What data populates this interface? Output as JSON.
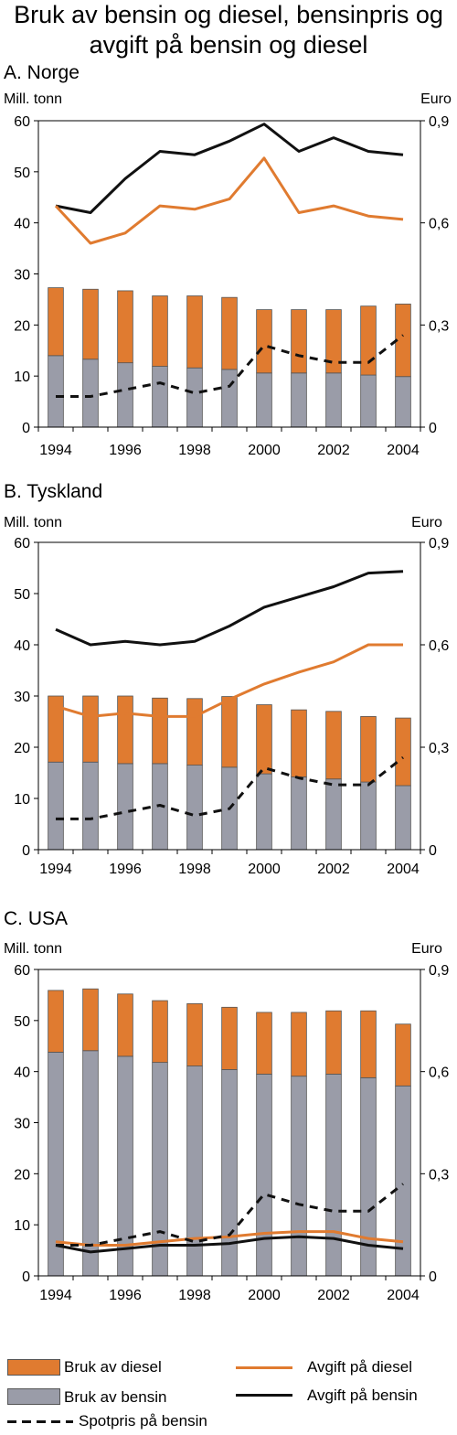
{
  "title": "Bruk av bensin og diesel, bensinpris og avgift på bensin og diesel",
  "colors": {
    "diesel": "#e07b30",
    "bensin": "#9a9ca8",
    "avgift_diesel": "#e07b30",
    "avgift_bensin": "#111111",
    "spotpris": "#111111"
  },
  "legend": {
    "diesel": "Bruk av diesel",
    "bensin": "Bruk av bensin",
    "avgift_diesel": "Avgift på diesel",
    "avgift_bensin": "Avgift på bensin",
    "spotpris": "Spotpris på bensin"
  },
  "chart_data": [
    {
      "type": "bar",
      "title": "A. Norge",
      "ylabel": "Mill. tonn",
      "y2label": "Euro",
      "categories": [
        "1994",
        "1995",
        "1996",
        "1997",
        "1998",
        "1999",
        "2000",
        "2001",
        "2002",
        "2003",
        "2004"
      ],
      "xticks": [
        "1994",
        "1996",
        "1998",
        "2000",
        "2002",
        "2004"
      ],
      "ylim": [
        0,
        60
      ],
      "yticks": [
        "0",
        "10",
        "20",
        "30",
        "40",
        "50",
        "60"
      ],
      "y2lim": [
        0,
        0.9
      ],
      "y2ticks": [
        "0",
        "0,3",
        "0,6",
        "0,9"
      ],
      "stacked_bars": [
        {
          "key": "bensin",
          "values": [
            14.0,
            13.3,
            12.6,
            11.9,
            11.6,
            11.3,
            10.6,
            10.6,
            10.6,
            10.2,
            9.9
          ]
        },
        {
          "key": "diesel",
          "values": [
            13.3,
            13.7,
            14.1,
            13.8,
            14.1,
            14.1,
            12.4,
            12.4,
            12.4,
            13.5,
            14.2
          ]
        }
      ],
      "lines": [
        {
          "key": "avgift_bensin",
          "values": [
            0.65,
            0.63,
            0.73,
            0.81,
            0.8,
            0.84,
            0.89,
            0.81,
            0.85,
            0.81,
            0.8
          ]
        },
        {
          "key": "avgift_diesel",
          "values": [
            0.65,
            0.54,
            0.57,
            0.65,
            0.64,
            0.67,
            0.79,
            0.63,
            0.65,
            0.62,
            0.61
          ]
        },
        {
          "key": "spotpris",
          "values": [
            0.09,
            0.09,
            0.11,
            0.13,
            0.1,
            0.12,
            0.24,
            0.21,
            0.19,
            0.19,
            0.27
          ]
        }
      ]
    },
    {
      "type": "bar",
      "title": "B. Tyskland",
      "ylabel": "Mill. tonn",
      "y2label": "Euro",
      "categories": [
        "1994",
        "1995",
        "1996",
        "1997",
        "1998",
        "1999",
        "2000",
        "2001",
        "2002",
        "2003",
        "2004"
      ],
      "xticks": [
        "1994",
        "1996",
        "1998",
        "2000",
        "2002",
        "2004"
      ],
      "ylim": [
        0,
        60
      ],
      "yticks": [
        "0",
        "10",
        "20",
        "30",
        "40",
        "50",
        "60"
      ],
      "y2lim": [
        0,
        0.9
      ],
      "y2ticks": [
        "0",
        "0,3",
        "0,6",
        "0,9"
      ],
      "stacked_bars": [
        {
          "key": "bensin",
          "values": [
            17.1,
            17.1,
            16.8,
            16.8,
            16.5,
            16.1,
            14.8,
            14.2,
            13.8,
            13.2,
            12.5
          ]
        },
        {
          "key": "diesel",
          "values": [
            12.9,
            12.9,
            13.2,
            12.8,
            13.0,
            13.8,
            13.5,
            13.1,
            13.2,
            12.8,
            13.2
          ]
        }
      ],
      "lines": [
        {
          "key": "avgift_bensin",
          "values": [
            0.645,
            0.6,
            0.61,
            0.6,
            0.61,
            0.655,
            0.71,
            0.74,
            0.77,
            0.81,
            0.815
          ]
        },
        {
          "key": "avgift_diesel",
          "values": [
            0.42,
            0.39,
            0.4,
            0.39,
            0.39,
            0.44,
            0.485,
            0.52,
            0.55,
            0.6,
            0.6
          ]
        },
        {
          "key": "spotpris",
          "values": [
            0.09,
            0.09,
            0.11,
            0.13,
            0.1,
            0.12,
            0.24,
            0.21,
            0.19,
            0.19,
            0.27
          ]
        }
      ]
    },
    {
      "type": "bar",
      "title": "C. USA",
      "ylabel": "Mill. tonn",
      "y2label": "Euro",
      "categories": [
        "1994",
        "1995",
        "1996",
        "1997",
        "1998",
        "1999",
        "2000",
        "2001",
        "2002",
        "2003",
        "2004"
      ],
      "xticks": [
        "1994",
        "1996",
        "1998",
        "2000",
        "2002",
        "2004"
      ],
      "ylim": [
        0,
        60
      ],
      "yticks": [
        "0",
        "10",
        "20",
        "30",
        "40",
        "50",
        "60"
      ],
      "y2lim": [
        0,
        0.9
      ],
      "y2ticks": [
        "0",
        "0,3",
        "0,6",
        "0,9"
      ],
      "stacked_bars": [
        {
          "key": "bensin",
          "values": [
            43.8,
            44.1,
            43.0,
            41.8,
            41.1,
            40.4,
            39.5,
            39.1,
            39.5,
            38.8,
            37.2
          ]
        },
        {
          "key": "diesel",
          "values": [
            12.1,
            12.1,
            12.2,
            12.1,
            12.2,
            12.2,
            12.1,
            12.5,
            12.4,
            13.1,
            12.1
          ]
        }
      ],
      "lines": [
        {
          "key": "avgift_bensin",
          "values": [
            0.09,
            0.07,
            0.08,
            0.09,
            0.09,
            0.095,
            0.11,
            0.115,
            0.11,
            0.09,
            0.08
          ]
        },
        {
          "key": "avgift_diesel",
          "values": [
            0.1,
            0.09,
            0.09,
            0.1,
            0.11,
            0.115,
            0.125,
            0.13,
            0.13,
            0.11,
            0.1
          ]
        },
        {
          "key": "spotpris",
          "values": [
            0.09,
            0.09,
            0.11,
            0.13,
            0.1,
            0.12,
            0.24,
            0.21,
            0.19,
            0.19,
            0.27
          ]
        }
      ]
    }
  ]
}
